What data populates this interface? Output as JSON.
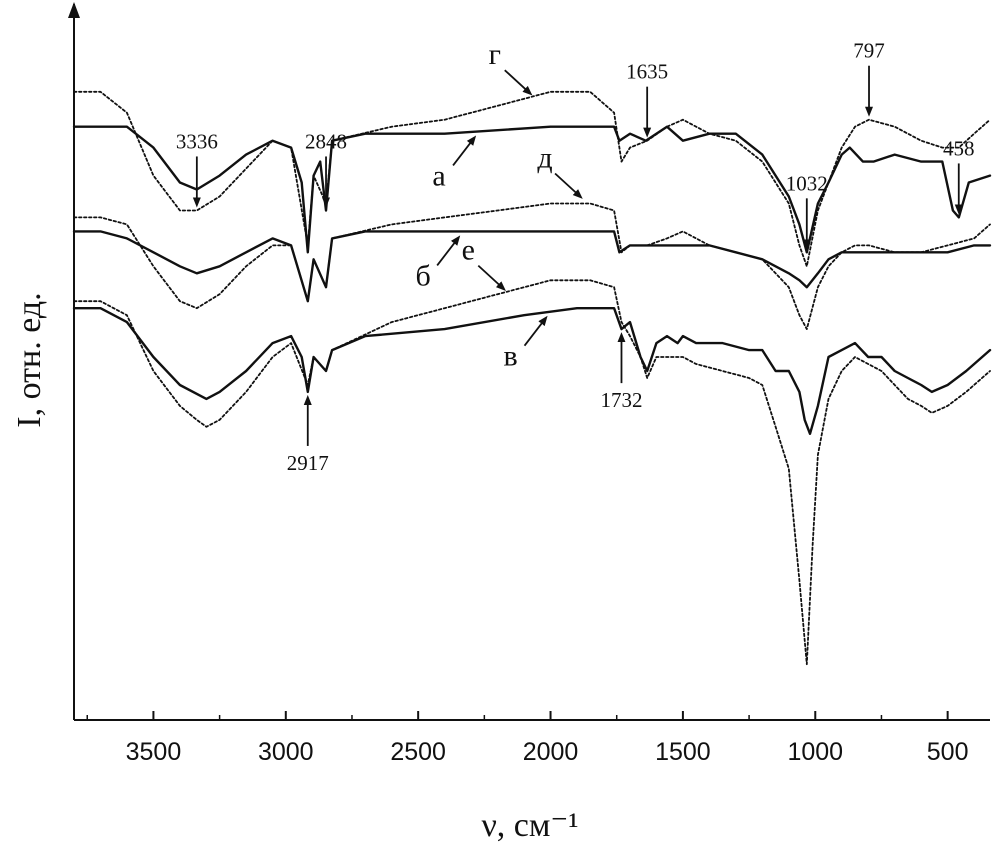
{
  "chart_data": {
    "type": "line",
    "xlabel": "ν, см⁻¹",
    "ylabel": "I, отн. ед.",
    "xlim": [
      3800,
      340
    ],
    "x_reversed": true,
    "x_ticks": [
      3500,
      3000,
      2500,
      2000,
      1500,
      1000,
      500
    ],
    "y_ticks": [],
    "grid": false,
    "legend": "none",
    "peak_labels": [
      {
        "text": "3336",
        "x": 3336,
        "direction": "down",
        "series": "г"
      },
      {
        "text": "2848",
        "x": 2848,
        "direction": "down",
        "series": "а"
      },
      {
        "text": "1635",
        "x": 1635,
        "direction": "down",
        "series": "г"
      },
      {
        "text": "797",
        "x": 797,
        "direction": "down",
        "series": "г"
      },
      {
        "text": "458",
        "x": 458,
        "direction": "down",
        "series": "а"
      },
      {
        "text": "1032",
        "x": 1032,
        "direction": "down",
        "series": "а"
      },
      {
        "text": "2917",
        "x": 2917,
        "direction": "up",
        "series": "в"
      },
      {
        "text": "1732",
        "x": 1732,
        "direction": "up",
        "series": "в"
      }
    ],
    "curve_labels": [
      {
        "text": "а",
        "series": "а",
        "x": 2270
      },
      {
        "text": "г",
        "series": "г",
        "x": 2120
      },
      {
        "text": "д",
        "series": "д",
        "x": 1930
      },
      {
        "text": "б",
        "series": "б",
        "x": 2330
      },
      {
        "text": "е",
        "series": "е",
        "x": 2220
      },
      {
        "text": "в",
        "series": "в",
        "x": 2000
      }
    ],
    "series": [
      {
        "name": "а",
        "style": "solid",
        "offset": 0,
        "points": [
          [
            3800,
            0.55
          ],
          [
            3700,
            0.55
          ],
          [
            3600,
            0.55
          ],
          [
            3500,
            0.52
          ],
          [
            3400,
            0.47
          ],
          [
            3336,
            0.46
          ],
          [
            3250,
            0.48
          ],
          [
            3150,
            0.51
          ],
          [
            3050,
            0.53
          ],
          [
            2980,
            0.52
          ],
          [
            2940,
            0.47
          ],
          [
            2917,
            0.37
          ],
          [
            2895,
            0.48
          ],
          [
            2870,
            0.5
          ],
          [
            2848,
            0.43
          ],
          [
            2825,
            0.53
          ],
          [
            2700,
            0.54
          ],
          [
            2400,
            0.54
          ],
          [
            2000,
            0.55
          ],
          [
            1760,
            0.55
          ],
          [
            1740,
            0.53
          ],
          [
            1700,
            0.54
          ],
          [
            1640,
            0.53
          ],
          [
            1560,
            0.55
          ],
          [
            1500,
            0.53
          ],
          [
            1400,
            0.54
          ],
          [
            1300,
            0.54
          ],
          [
            1200,
            0.51
          ],
          [
            1100,
            0.45
          ],
          [
            1060,
            0.41
          ],
          [
            1032,
            0.37
          ],
          [
            990,
            0.44
          ],
          [
            950,
            0.47
          ],
          [
            900,
            0.51
          ],
          [
            870,
            0.52
          ],
          [
            820,
            0.5
          ],
          [
            780,
            0.5
          ],
          [
            700,
            0.51
          ],
          [
            600,
            0.5
          ],
          [
            520,
            0.5
          ],
          [
            480,
            0.43
          ],
          [
            458,
            0.42
          ],
          [
            420,
            0.47
          ],
          [
            340,
            0.48
          ]
        ]
      },
      {
        "name": "г",
        "style": "dotted",
        "offset": 0,
        "points": [
          [
            3800,
            0.6
          ],
          [
            3700,
            0.6
          ],
          [
            3600,
            0.57
          ],
          [
            3500,
            0.48
          ],
          [
            3400,
            0.43
          ],
          [
            3336,
            0.43
          ],
          [
            3250,
            0.45
          ],
          [
            3150,
            0.49
          ],
          [
            3050,
            0.53
          ],
          [
            2980,
            0.52
          ],
          [
            2917,
            0.38
          ],
          [
            2895,
            0.48
          ],
          [
            2848,
            0.44
          ],
          [
            2825,
            0.53
          ],
          [
            2600,
            0.55
          ],
          [
            2400,
            0.56
          ],
          [
            2200,
            0.58
          ],
          [
            2000,
            0.6
          ],
          [
            1850,
            0.6
          ],
          [
            1760,
            0.57
          ],
          [
            1732,
            0.5
          ],
          [
            1700,
            0.52
          ],
          [
            1635,
            0.53
          ],
          [
            1560,
            0.55
          ],
          [
            1500,
            0.56
          ],
          [
            1400,
            0.54
          ],
          [
            1300,
            0.53
          ],
          [
            1200,
            0.5
          ],
          [
            1100,
            0.44
          ],
          [
            1060,
            0.38
          ],
          [
            1032,
            0.35
          ],
          [
            990,
            0.43
          ],
          [
            950,
            0.47
          ],
          [
            900,
            0.52
          ],
          [
            850,
            0.55
          ],
          [
            797,
            0.56
          ],
          [
            700,
            0.55
          ],
          [
            600,
            0.53
          ],
          [
            520,
            0.52
          ],
          [
            458,
            0.52
          ],
          [
            400,
            0.54
          ],
          [
            340,
            0.56
          ]
        ]
      },
      {
        "name": "б",
        "style": "solid",
        "offset": 0,
        "points": [
          [
            3800,
            0.4
          ],
          [
            3700,
            0.4
          ],
          [
            3600,
            0.39
          ],
          [
            3500,
            0.37
          ],
          [
            3400,
            0.35
          ],
          [
            3336,
            0.34
          ],
          [
            3250,
            0.35
          ],
          [
            3150,
            0.37
          ],
          [
            3050,
            0.39
          ],
          [
            2980,
            0.38
          ],
          [
            2917,
            0.3
          ],
          [
            2895,
            0.36
          ],
          [
            2848,
            0.32
          ],
          [
            2825,
            0.39
          ],
          [
            2700,
            0.4
          ],
          [
            2400,
            0.4
          ],
          [
            2000,
            0.4
          ],
          [
            1760,
            0.4
          ],
          [
            1740,
            0.37
          ],
          [
            1700,
            0.38
          ],
          [
            1640,
            0.38
          ],
          [
            1500,
            0.38
          ],
          [
            1400,
            0.38
          ],
          [
            1300,
            0.37
          ],
          [
            1200,
            0.36
          ],
          [
            1100,
            0.34
          ],
          [
            1060,
            0.33
          ],
          [
            1032,
            0.32
          ],
          [
            990,
            0.34
          ],
          [
            950,
            0.36
          ],
          [
            900,
            0.37
          ],
          [
            850,
            0.37
          ],
          [
            700,
            0.37
          ],
          [
            600,
            0.37
          ],
          [
            500,
            0.37
          ],
          [
            400,
            0.38
          ],
          [
            340,
            0.38
          ]
        ]
      },
      {
        "name": "д",
        "style": "dotted",
        "offset": 0,
        "points": [
          [
            3800,
            0.42
          ],
          [
            3700,
            0.42
          ],
          [
            3600,
            0.41
          ],
          [
            3500,
            0.35
          ],
          [
            3400,
            0.3
          ],
          [
            3336,
            0.29
          ],
          [
            3250,
            0.31
          ],
          [
            3150,
            0.35
          ],
          [
            3050,
            0.38
          ],
          [
            2980,
            0.38
          ],
          [
            2917,
            0.3
          ],
          [
            2895,
            0.36
          ],
          [
            2848,
            0.32
          ],
          [
            2825,
            0.39
          ],
          [
            2600,
            0.41
          ],
          [
            2400,
            0.42
          ],
          [
            2200,
            0.43
          ],
          [
            2000,
            0.44
          ],
          [
            1850,
            0.44
          ],
          [
            1760,
            0.43
          ],
          [
            1732,
            0.37
          ],
          [
            1700,
            0.38
          ],
          [
            1635,
            0.38
          ],
          [
            1560,
            0.39
          ],
          [
            1500,
            0.4
          ],
          [
            1400,
            0.38
          ],
          [
            1300,
            0.37
          ],
          [
            1200,
            0.36
          ],
          [
            1100,
            0.32
          ],
          [
            1060,
            0.28
          ],
          [
            1032,
            0.26
          ],
          [
            990,
            0.32
          ],
          [
            950,
            0.35
          ],
          [
            900,
            0.37
          ],
          [
            850,
            0.38
          ],
          [
            797,
            0.38
          ],
          [
            700,
            0.37
          ],
          [
            600,
            0.37
          ],
          [
            500,
            0.38
          ],
          [
            400,
            0.39
          ],
          [
            340,
            0.41
          ]
        ]
      },
      {
        "name": "в",
        "style": "solid",
        "offset": 0,
        "points": [
          [
            3800,
            0.29
          ],
          [
            3700,
            0.29
          ],
          [
            3600,
            0.27
          ],
          [
            3500,
            0.22
          ],
          [
            3400,
            0.18
          ],
          [
            3300,
            0.16
          ],
          [
            3250,
            0.17
          ],
          [
            3150,
            0.2
          ],
          [
            3050,
            0.24
          ],
          [
            2980,
            0.25
          ],
          [
            2940,
            0.22
          ],
          [
            2917,
            0.17
          ],
          [
            2895,
            0.22
          ],
          [
            2848,
            0.2
          ],
          [
            2825,
            0.23
          ],
          [
            2700,
            0.25
          ],
          [
            2400,
            0.26
          ],
          [
            2100,
            0.28
          ],
          [
            1900,
            0.29
          ],
          [
            1760,
            0.29
          ],
          [
            1732,
            0.26
          ],
          [
            1700,
            0.27
          ],
          [
            1660,
            0.22
          ],
          [
            1635,
            0.2
          ],
          [
            1600,
            0.24
          ],
          [
            1560,
            0.25
          ],
          [
            1520,
            0.24
          ],
          [
            1500,
            0.25
          ],
          [
            1450,
            0.24
          ],
          [
            1350,
            0.24
          ],
          [
            1250,
            0.23
          ],
          [
            1200,
            0.23
          ],
          [
            1150,
            0.2
          ],
          [
            1100,
            0.2
          ],
          [
            1060,
            0.17
          ],
          [
            1040,
            0.13
          ],
          [
            1020,
            0.11
          ],
          [
            990,
            0.15
          ],
          [
            950,
            0.22
          ],
          [
            900,
            0.23
          ],
          [
            850,
            0.24
          ],
          [
            800,
            0.22
          ],
          [
            750,
            0.22
          ],
          [
            700,
            0.2
          ],
          [
            650,
            0.19
          ],
          [
            600,
            0.18
          ],
          [
            560,
            0.17
          ],
          [
            500,
            0.18
          ],
          [
            430,
            0.2
          ],
          [
            340,
            0.23
          ]
        ]
      },
      {
        "name": "е",
        "style": "dotted",
        "offset": 0,
        "points": [
          [
            3800,
            0.3
          ],
          [
            3700,
            0.3
          ],
          [
            3600,
            0.28
          ],
          [
            3500,
            0.2
          ],
          [
            3400,
            0.15
          ],
          [
            3336,
            0.13
          ],
          [
            3300,
            0.12
          ],
          [
            3250,
            0.13
          ],
          [
            3150,
            0.17
          ],
          [
            3050,
            0.22
          ],
          [
            2980,
            0.24
          ],
          [
            2917,
            0.18
          ],
          [
            2895,
            0.22
          ],
          [
            2848,
            0.2
          ],
          [
            2825,
            0.23
          ],
          [
            2600,
            0.27
          ],
          [
            2400,
            0.29
          ],
          [
            2200,
            0.31
          ],
          [
            2000,
            0.33
          ],
          [
            1850,
            0.33
          ],
          [
            1760,
            0.32
          ],
          [
            1732,
            0.27
          ],
          [
            1700,
            0.25
          ],
          [
            1660,
            0.22
          ],
          [
            1635,
            0.19
          ],
          [
            1600,
            0.22
          ],
          [
            1560,
            0.22
          ],
          [
            1500,
            0.22
          ],
          [
            1450,
            0.21
          ],
          [
            1350,
            0.2
          ],
          [
            1250,
            0.19
          ],
          [
            1200,
            0.18
          ],
          [
            1150,
            0.12
          ],
          [
            1100,
            0.06
          ],
          [
            1060,
            -0.1
          ],
          [
            1032,
            -0.22
          ],
          [
            1010,
            -0.05
          ],
          [
            990,
            0.08
          ],
          [
            950,
            0.16
          ],
          [
            900,
            0.2
          ],
          [
            850,
            0.22
          ],
          [
            800,
            0.21
          ],
          [
            750,
            0.2
          ],
          [
            700,
            0.18
          ],
          [
            650,
            0.16
          ],
          [
            600,
            0.15
          ],
          [
            560,
            0.14
          ],
          [
            500,
            0.15
          ],
          [
            430,
            0.17
          ],
          [
            340,
            0.2
          ]
        ]
      }
    ]
  }
}
